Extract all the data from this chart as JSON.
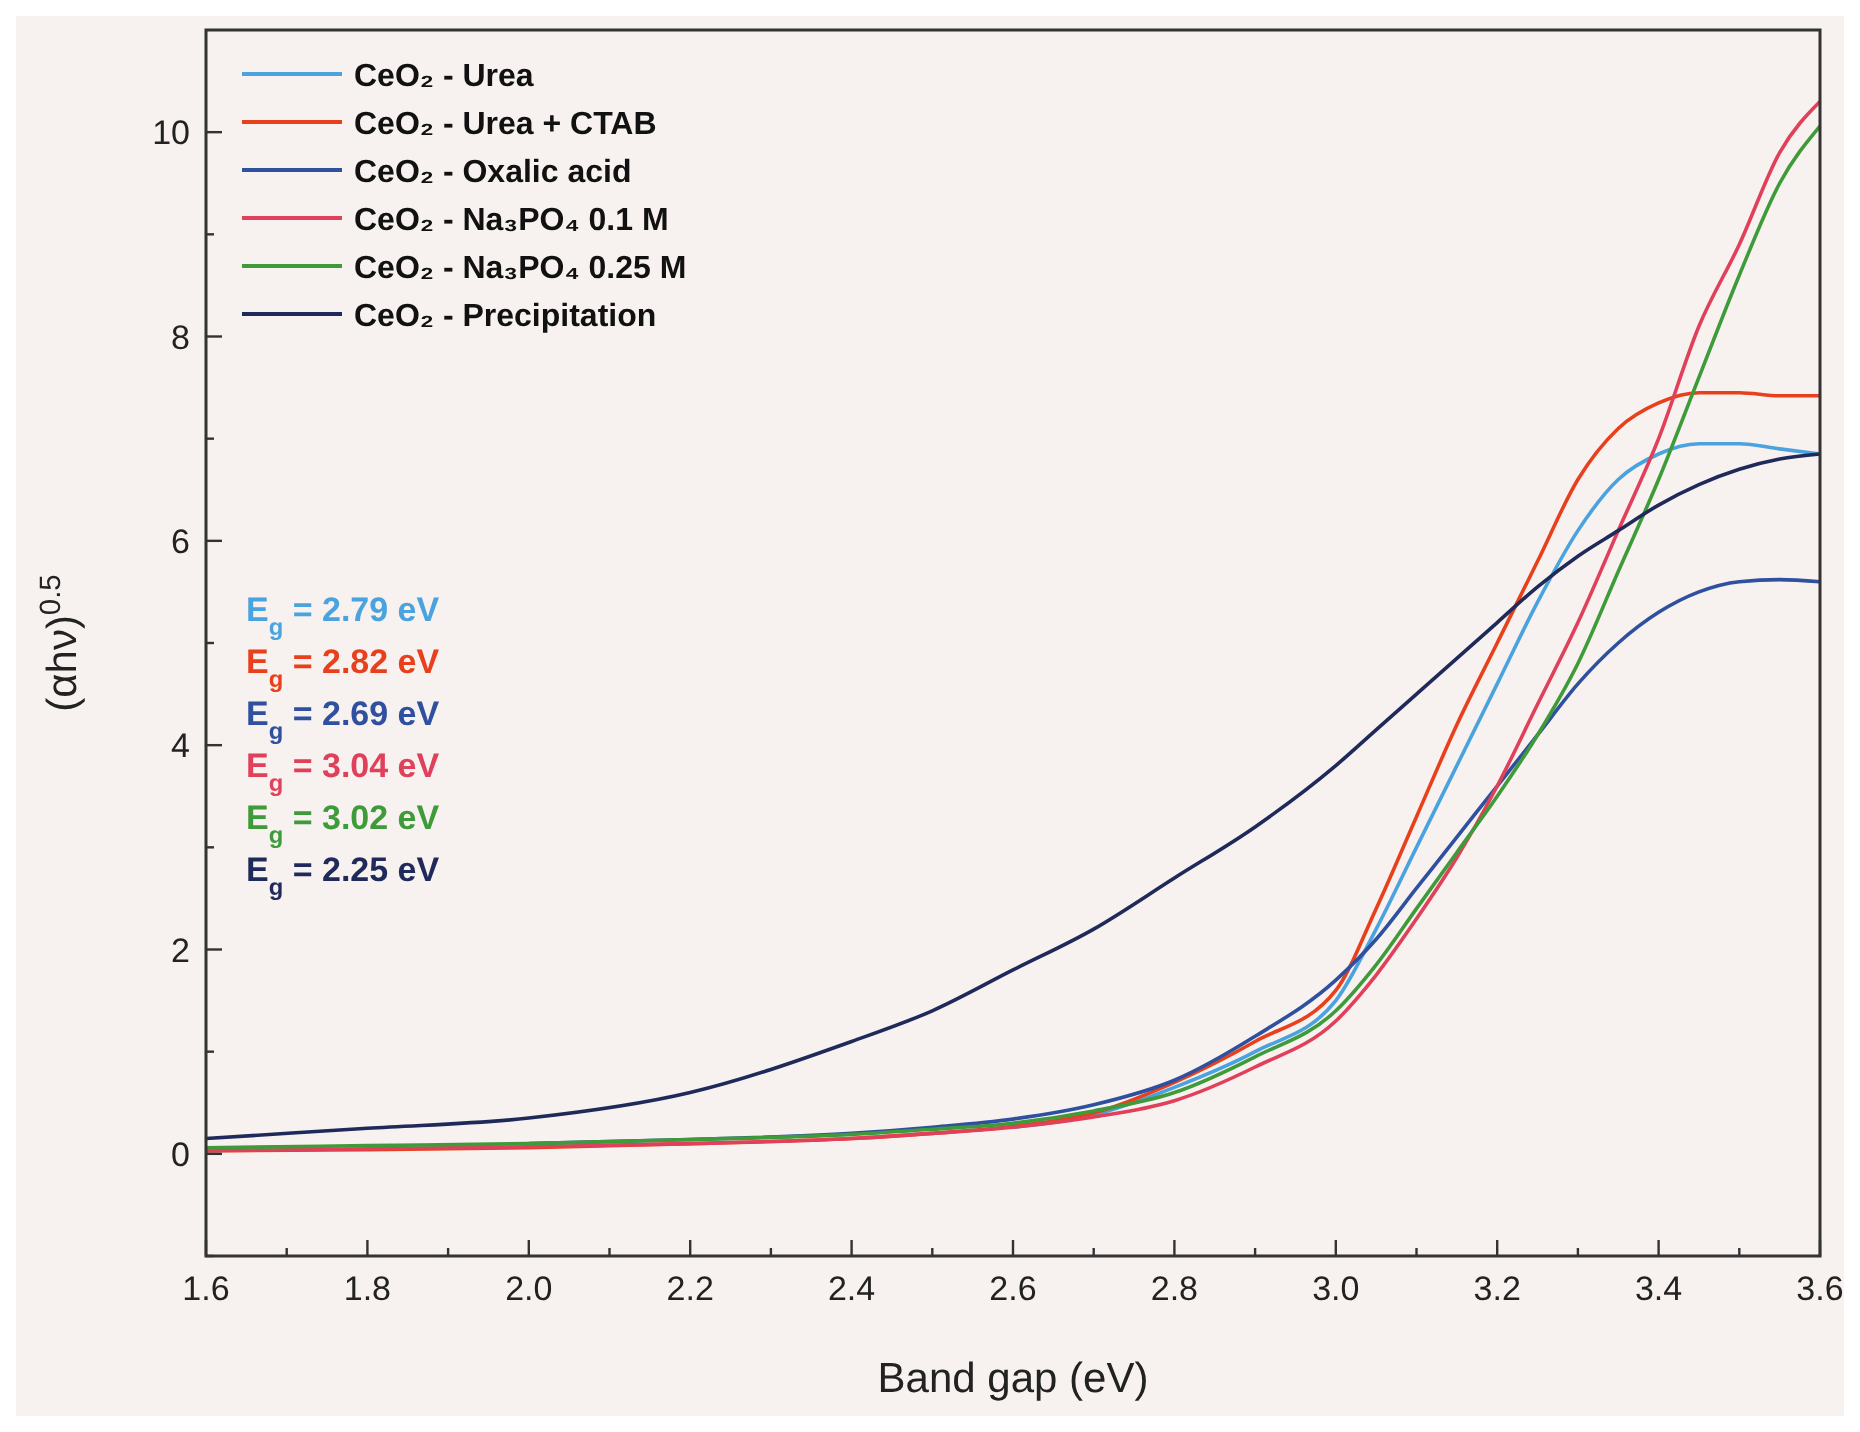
{
  "chart_data": {
    "type": "line",
    "xlabel": "Band gap (eV)",
    "ylabel": "(αhν)$^{0.5}$",
    "xlim": [
      1.6,
      3.6
    ],
    "ylim": [
      -1,
      11
    ],
    "xticks": [
      1.6,
      {
        "value": 1.7,
        "label": null
      },
      1.8,
      {
        "value": 1.9,
        "label": null
      },
      {
        "value": 2,
        "label": "2.0"
      },
      {
        "value": 2.1,
        "label": null
      },
      2.2,
      {
        "value": 2.3,
        "label": null
      },
      2.4,
      {
        "value": 2.5,
        "label": null
      },
      2.6,
      {
        "value": 2.7,
        "label": null
      },
      2.8,
      {
        "value": 2.9,
        "label": null
      },
      {
        "value": 3,
        "label": "3.0"
      },
      {
        "value": 3.1,
        "label": null
      },
      3.2,
      {
        "value": 3.3,
        "label": null
      },
      3.4,
      {
        "value": 3.5,
        "label": null
      },
      3.6
    ],
    "yticks": [
      {
        "value": -1,
        "label": null
      },
      0,
      {
        "value": 1,
        "label": null
      },
      2,
      {
        "value": 3,
        "label": null
      },
      4,
      {
        "value": 5,
        "label": null
      },
      6,
      {
        "value": 7,
        "label": null
      },
      8,
      {
        "value": 9,
        "label": null
      },
      10
    ],
    "grid": false,
    "legend": "top left",
    "line_style": "solid",
    "annotations": [
      "E$_{g}$ = 2.79 eV",
      "E$_{g}$ = 2.82 eV",
      "E$_{g}$ = 2.69 eV",
      "E$_{g}$ = 3.04 eV",
      "E$_{g}$ = 3.02 eV",
      "E$_{g}$ = 2.25 eV"
    ],
    "x": [
      1.6,
      1.8,
      2.0,
      2.2,
      2.4,
      2.5,
      2.6,
      2.7,
      2.8,
      2.9,
      3.0,
      3.05,
      3.1,
      3.15,
      3.2,
      3.25,
      3.3,
      3.35,
      3.4,
      3.45,
      3.5,
      3.55,
      3.6
    ],
    "series": [
      {
        "name": "CeO₂ - Urea",
        "color": "#4aa3df",
        "values": [
          null,
          null,
          null,
          null,
          null,
          null,
          0.26,
          0.38,
          0.65,
          1.0,
          1.5,
          2.2,
          3.0,
          3.8,
          4.6,
          5.4,
          6.1,
          6.6,
          6.85,
          6.95,
          6.95,
          6.9,
          6.85
        ]
      },
      {
        "name": "CeO₂ - Urea + CTAB",
        "color": "#e8401c",
        "values": [
          0.03,
          0.04,
          0.06,
          0.1,
          0.15,
          0.2,
          0.27,
          0.4,
          0.7,
          1.1,
          1.6,
          2.4,
          3.3,
          4.2,
          5.0,
          5.8,
          6.6,
          7.1,
          7.35,
          7.45,
          7.45,
          7.42,
          7.42
        ]
      },
      {
        "name": "CeO₂ - Oxalic acid",
        "color": "#2f4f9f",
        "values": [
          null,
          null,
          0.1,
          0.14,
          0.2,
          0.26,
          0.34,
          0.48,
          0.72,
          1.15,
          1.7,
          2.1,
          2.6,
          3.1,
          3.6,
          4.1,
          4.6,
          5.0,
          5.3,
          5.5,
          5.6,
          5.62,
          5.6
        ]
      },
      {
        "name": "CeO₂ - Na₃PO₄ 0.1 M",
        "color": "#e0405a",
        "values": [
          0.03,
          0.05,
          0.07,
          0.1,
          0.15,
          0.2,
          0.26,
          0.36,
          0.52,
          0.85,
          1.3,
          1.75,
          2.3,
          2.9,
          3.6,
          4.4,
          5.2,
          6.1,
          7.0,
          8.1,
          8.9,
          9.8,
          10.3
        ]
      },
      {
        "name": "CeO₂ - Na₃PO₄ 0.25 M",
        "color": "#3f9a3a",
        "values": [
          0.06,
          0.08,
          0.1,
          0.14,
          0.19,
          0.24,
          0.3,
          0.42,
          0.6,
          0.95,
          1.4,
          1.85,
          2.4,
          2.95,
          3.5,
          4.1,
          4.8,
          5.7,
          6.6,
          7.6,
          8.6,
          9.5,
          10.06
        ]
      },
      {
        "name": "CeO₂ - Precipitation",
        "color": "#1f2a5a",
        "values": [
          0.15,
          0.25,
          0.35,
          0.6,
          1.1,
          1.4,
          1.8,
          2.2,
          2.7,
          3.2,
          3.8,
          4.15,
          4.5,
          4.85,
          5.2,
          5.55,
          5.85,
          6.1,
          6.35,
          6.55,
          6.7,
          6.8,
          6.85
        ]
      }
    ]
  }
}
